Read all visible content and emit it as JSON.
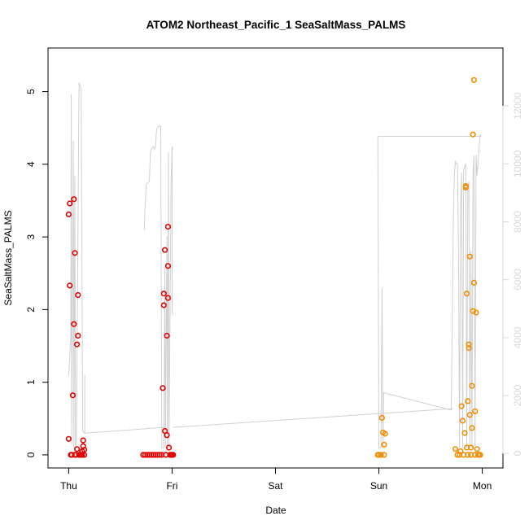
{
  "chart_data": {
    "type": "scatter",
    "title": "ATOM2 Northeast_Pacific_1 SeaSaltMass_PALMS",
    "xlabel": "Date",
    "ylabel": "SeaSaltMass_PALMS",
    "x_ticks": [
      {
        "label": "Thu",
        "day": 0
      },
      {
        "label": "Fri",
        "day": 1
      },
      {
        "label": "Sat",
        "day": 2
      },
      {
        "label": "Sun",
        "day": 3
      },
      {
        "label": "Mon",
        "day": 4
      }
    ],
    "xlim_days": [
      -0.2,
      4.2
    ],
    "ylim": [
      -0.18,
      5.6
    ],
    "y_ticks": [
      0,
      1,
      2,
      3,
      4,
      5
    ],
    "y2lim": [
      -500,
      14000
    ],
    "y2_ticks": [
      0,
      2000,
      4000,
      6000,
      8000,
      10000,
      12000
    ],
    "grid": false,
    "legend": "none",
    "colors": {
      "series_red": "#e00000",
      "series_orange": "#f28c00",
      "altitude_line": "#d0d0d0",
      "axis": "#000000",
      "y2_axis": "#d9d9d9"
    },
    "series": [
      {
        "color": "red",
        "points": [
          [
            0.0,
            0.22
          ],
          [
            0.0,
            3.31
          ],
          [
            0.01,
            3.46
          ],
          [
            0.01,
            2.33
          ],
          [
            0.02,
            0.0
          ],
          [
            0.03,
            0.0
          ],
          [
            0.04,
            0.82
          ],
          [
            0.05,
            1.8
          ],
          [
            0.05,
            3.52
          ],
          [
            0.06,
            2.78
          ],
          [
            0.06,
            0.0
          ],
          [
            0.07,
            0.0
          ],
          [
            0.08,
            0.08
          ],
          [
            0.08,
            1.52
          ],
          [
            0.09,
            1.64
          ],
          [
            0.09,
            2.2
          ],
          [
            0.1,
            0.0
          ],
          [
            0.11,
            0.0
          ],
          [
            0.12,
            0.0
          ],
          [
            0.13,
            0.0
          ],
          [
            0.13,
            0.05
          ],
          [
            0.14,
            0.2
          ],
          [
            0.14,
            0.12
          ],
          [
            0.15,
            0.07
          ],
          [
            0.15,
            0.0
          ],
          [
            0.72,
            0.0
          ],
          [
            0.74,
            0.0
          ],
          [
            0.76,
            0.0
          ],
          [
            0.78,
            0.0
          ],
          [
            0.8,
            0.0
          ],
          [
            0.82,
            0.0
          ],
          [
            0.84,
            0.0
          ],
          [
            0.86,
            0.0
          ],
          [
            0.88,
            0.0
          ],
          [
            0.9,
            0.0
          ],
          [
            0.91,
            0.92
          ],
          [
            0.92,
            2.22
          ],
          [
            0.92,
            2.06
          ],
          [
            0.93,
            2.82
          ],
          [
            0.93,
            0.33
          ],
          [
            0.94,
            0.0
          ],
          [
            0.95,
            0.27
          ],
          [
            0.95,
            1.64
          ],
          [
            0.96,
            2.6
          ],
          [
            0.96,
            3.14
          ],
          [
            0.96,
            2.16
          ],
          [
            0.97,
            0.1
          ],
          [
            0.98,
            0.0
          ],
          [
            0.99,
            0.0
          ],
          [
            1.0,
            0.0
          ],
          [
            1.01,
            0.0
          ],
          [
            0.995,
            0.0
          ]
        ]
      },
      {
        "color": "orange",
        "points": [
          [
            2.99,
            0.0
          ],
          [
            3.0,
            0.0
          ],
          [
            3.02,
            0.0
          ],
          [
            3.03,
            0.51
          ],
          [
            3.04,
            0.31
          ],
          [
            3.05,
            0.0
          ],
          [
            3.05,
            0.14
          ],
          [
            3.06,
            0.29
          ],
          [
            3.74,
            0.08
          ],
          [
            3.76,
            0.0
          ],
          [
            3.78,
            0.0
          ],
          [
            3.79,
            0.05
          ],
          [
            3.8,
            0.67
          ],
          [
            3.81,
            0.47
          ],
          [
            3.82,
            0.0
          ],
          [
            3.83,
            0.3
          ],
          [
            3.84,
            3.7
          ],
          [
            3.84,
            3.68
          ],
          [
            3.85,
            2.22
          ],
          [
            3.85,
            0.1
          ],
          [
            3.86,
            0.0
          ],
          [
            3.86,
            0.74
          ],
          [
            3.87,
            1.52
          ],
          [
            3.87,
            1.47
          ],
          [
            3.88,
            2.73
          ],
          [
            3.88,
            0.55
          ],
          [
            3.89,
            0.0
          ],
          [
            3.89,
            0.1
          ],
          [
            3.9,
            0.37
          ],
          [
            3.9,
            0.95
          ],
          [
            3.91,
            1.98
          ],
          [
            3.91,
            4.41
          ],
          [
            3.92,
            5.16
          ],
          [
            3.92,
            2.37
          ],
          [
            3.93,
            0.6
          ],
          [
            3.93,
            0.0
          ],
          [
            3.94,
            1.96
          ],
          [
            3.95,
            0.08
          ],
          [
            3.96,
            0.0
          ],
          [
            3.97,
            0.0
          ],
          [
            3.98,
            0.0
          ]
        ]
      }
    ],
    "altitude_trace": [
      [
        0.0,
        2700
      ],
      [
        0.02,
        4000
      ],
      [
        0.025,
        12400
      ],
      [
        0.03,
        300
      ],
      [
        0.045,
        10800
      ],
      [
        0.05,
        200
      ],
      [
        0.06,
        9600
      ],
      [
        0.065,
        200
      ],
      [
        0.075,
        200
      ],
      [
        0.1,
        12800
      ],
      [
        0.12,
        12600
      ],
      [
        0.135,
        800
      ],
      [
        0.15,
        700
      ],
      [
        0.155,
        730
      ],
      [
        0.73,
        7700
      ],
      [
        0.74,
        8600
      ],
      [
        0.75,
        9300
      ],
      [
        0.78,
        9400
      ],
      [
        0.79,
        10400
      ],
      [
        0.8,
        10500
      ],
      [
        0.82,
        10600
      ],
      [
        0.83,
        10500
      ],
      [
        0.84,
        10600
      ],
      [
        0.85,
        11200
      ],
      [
        0.87,
        11300
      ],
      [
        0.89,
        11300
      ],
      [
        0.9,
        200
      ],
      [
        0.92,
        200
      ],
      [
        0.93,
        6400
      ],
      [
        0.935,
        200
      ],
      [
        0.95,
        7500
      ],
      [
        0.955,
        200
      ],
      [
        0.965,
        10400
      ],
      [
        0.97,
        200
      ],
      [
        0.99,
        9400
      ],
      [
        1.0,
        10600
      ],
      [
        1.0,
        4800
      ],
      [
        0.155,
        2700
      ],
      [
        2.99,
        10950
      ],
      [
        3.0,
        200
      ],
      [
        3.02,
        200
      ],
      [
        3.03,
        5700
      ],
      [
        3.04,
        200
      ],
      [
        3.045,
        2100
      ],
      [
        3.7,
        1500
      ],
      [
        3.72,
        8000
      ],
      [
        3.73,
        9600
      ],
      [
        3.74,
        10100
      ],
      [
        3.75,
        10000
      ],
      [
        3.76,
        10000
      ],
      [
        3.77,
        7000
      ],
      [
        3.78,
        200
      ],
      [
        3.79,
        8500
      ],
      [
        3.8,
        9700
      ],
      [
        3.81,
        200
      ],
      [
        3.82,
        9800
      ],
      [
        3.83,
        9900
      ],
      [
        3.84,
        10000
      ],
      [
        3.85,
        200
      ],
      [
        3.86,
        9200
      ],
      [
        3.87,
        9400
      ],
      [
        3.88,
        200
      ],
      [
        3.89,
        7000
      ],
      [
        3.9,
        200
      ],
      [
        3.91,
        9700
      ],
      [
        3.92,
        10300
      ],
      [
        3.93,
        200
      ],
      [
        3.94,
        10300
      ],
      [
        3.95,
        9600
      ],
      [
        3.96,
        10100
      ],
      [
        3.97,
        10600
      ],
      [
        3.98,
        11000
      ],
      [
        3.99,
        10950
      ]
    ],
    "altitude_connectors": [
      [
        [
          0.155,
          700
        ],
        [
          0.92,
          900
        ]
      ],
      [
        [
          1.01,
          900
        ],
        [
          3.72,
          1550
        ]
      ],
      [
        [
          2.99,
          10950
        ],
        [
          3.99,
          10950
        ]
      ]
    ]
  }
}
